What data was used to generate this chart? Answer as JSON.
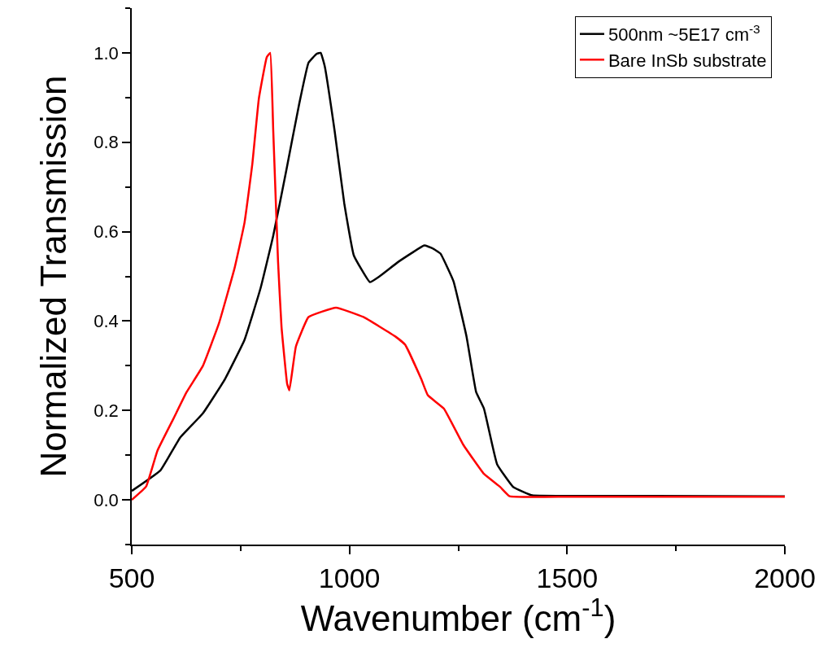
{
  "chart_data": {
    "type": "line",
    "xlabel": "Wavenumber (cm$^{-1}$)",
    "ylabel": "Normalized Transmission",
    "xlim": [
      500,
      2000
    ],
    "xticks": [
      500,
      1000,
      1500,
      2000
    ],
    "ylim": [
      -0.1,
      1.1
    ],
    "yticks": [
      {
        "value": 0,
        "label": "0.0"
      },
      0.2,
      0.4,
      0.6,
      0.8,
      {
        "value": 1,
        "label": "1.0"
      }
    ],
    "legend": "top right",
    "marker": "none",
    "line_style": "solid",
    "series": [
      {
        "name": "500nm ~5E17 cm$^{-3}$",
        "color": "#000000",
        "x": [
          500,
          566,
          611,
          663,
          714,
          759,
          796,
          825,
          855,
          884,
          906,
          925,
          934,
          943,
          966,
          988,
          1010,
          1047,
          1069,
          1113,
          1172,
          1190,
          1209,
          1239,
          1269,
          1291,
          1309,
          1339,
          1376,
          1420,
          1500,
          1700,
          2000
        ],
        "values": [
          0.02,
          0.066,
          0.139,
          0.193,
          0.27,
          0.358,
          0.474,
          0.591,
          0.737,
          0.883,
          0.978,
          0.998,
          1.0,
          0.971,
          0.825,
          0.664,
          0.547,
          0.487,
          0.5,
          0.533,
          0.569,
          0.563,
          0.551,
          0.489,
          0.365,
          0.241,
          0.204,
          0.08,
          0.029,
          0.01,
          0.009,
          0.009,
          0.008
        ]
      },
      {
        "name": "Bare InSb substrate",
        "color": "#ff0000",
        "x": [
          500,
          533,
          559,
          596,
          626,
          663,
          700,
          736,
          759,
          777,
          792,
          810,
          818,
          825,
          836,
          844,
          857,
          862,
          877,
          906,
          969,
          1032,
          1106,
          1128,
          1165,
          1180,
          1217,
          1261,
          1309,
          1346,
          1368,
          1500,
          1700,
          2000
        ],
        "values": [
          0.0,
          0.03,
          0.11,
          0.182,
          0.241,
          0.299,
          0.394,
          0.518,
          0.62,
          0.752,
          0.898,
          0.99,
          1.0,
          0.825,
          0.533,
          0.387,
          0.259,
          0.245,
          0.343,
          0.409,
          0.43,
          0.409,
          0.365,
          0.347,
          0.27,
          0.234,
          0.204,
          0.124,
          0.058,
          0.029,
          0.008,
          0.007,
          0.007,
          0.007
        ]
      }
    ]
  }
}
